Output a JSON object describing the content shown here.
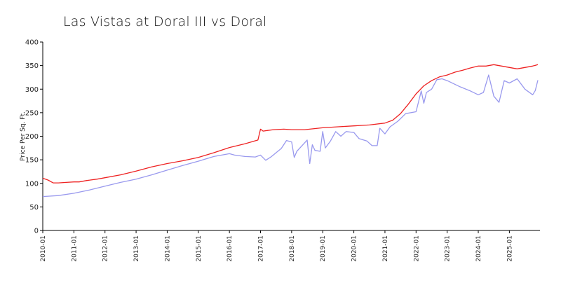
{
  "chart_data": {
    "type": "line",
    "title": "Las Vistas at Doral III vs Doral",
    "xlabel": "",
    "ylabel": "Price Per Sq. Ft.",
    "ylim": [
      0,
      400
    ],
    "yticks": [
      0,
      50,
      100,
      150,
      200,
      250,
      300,
      350,
      400
    ],
    "xlim": [
      "2010-01",
      "2025-12"
    ],
    "xticks": [
      "2010-01",
      "2011-01",
      "2012-01",
      "2013-01",
      "2014-01",
      "2015-01",
      "2016-01",
      "2017-01",
      "2018-01",
      "2019-01",
      "2020-01",
      "2021-01",
      "2022-01",
      "2023-01",
      "2024-01",
      "2025-01"
    ],
    "grid": false,
    "legend": "none",
    "series": [
      {
        "color": "#ee2222",
        "points": [
          [
            "2010-01",
            111
          ],
          [
            "2010-03",
            107
          ],
          [
            "2010-05",
            101
          ],
          [
            "2010-07",
            101
          ],
          [
            "2010-10",
            102
          ],
          [
            "2011-01",
            103
          ],
          [
            "2011-03",
            103
          ],
          [
            "2011-06",
            106
          ],
          [
            "2011-10",
            109
          ],
          [
            "2012-01",
            112
          ],
          [
            "2012-07",
            118
          ],
          [
            "2013-01",
            126
          ],
          [
            "2013-07",
            135
          ],
          [
            "2014-01",
            142
          ],
          [
            "2014-07",
            148
          ],
          [
            "2015-01",
            155
          ],
          [
            "2015-07",
            165
          ],
          [
            "2016-01",
            176
          ],
          [
            "2016-07",
            184
          ],
          [
            "2016-12",
            192
          ],
          [
            "2017-01",
            215
          ],
          [
            "2017-02",
            211
          ],
          [
            "2017-06",
            214
          ],
          [
            "2017-10",
            215
          ],
          [
            "2018-01",
            214
          ],
          [
            "2018-06",
            214
          ],
          [
            "2019-01",
            218
          ],
          [
            "2019-07",
            220
          ],
          [
            "2020-01",
            222
          ],
          [
            "2020-07",
            224
          ],
          [
            "2021-01",
            228
          ],
          [
            "2021-04",
            234
          ],
          [
            "2021-07",
            248
          ],
          [
            "2021-10",
            268
          ],
          [
            "2022-01",
            290
          ],
          [
            "2022-04",
            307
          ],
          [
            "2022-07",
            318
          ],
          [
            "2022-10",
            326
          ],
          [
            "2023-01",
            330
          ],
          [
            "2023-04",
            336
          ],
          [
            "2023-07",
            340
          ],
          [
            "2023-10",
            345
          ],
          [
            "2024-01",
            349
          ],
          [
            "2024-04",
            349
          ],
          [
            "2024-07",
            352
          ],
          [
            "2024-10",
            349
          ],
          [
            "2025-01",
            346
          ],
          [
            "2025-04",
            343
          ],
          [
            "2025-07",
            346
          ],
          [
            "2025-10",
            349
          ],
          [
            "2025-12",
            352
          ]
        ]
      },
      {
        "color": "#9999ee",
        "points": [
          [
            "2010-01",
            72
          ],
          [
            "2010-07",
            74
          ],
          [
            "2011-01",
            79
          ],
          [
            "2011-07",
            86
          ],
          [
            "2012-01",
            94
          ],
          [
            "2012-07",
            102
          ],
          [
            "2013-01",
            109
          ],
          [
            "2013-07",
            118
          ],
          [
            "2014-01",
            128
          ],
          [
            "2014-07",
            138
          ],
          [
            "2015-01",
            147
          ],
          [
            "2015-07",
            157
          ],
          [
            "2016-01",
            163
          ],
          [
            "2016-03",
            160
          ],
          [
            "2016-07",
            157
          ],
          [
            "2016-11",
            156
          ],
          [
            "2017-01",
            160
          ],
          [
            "2017-03",
            149
          ],
          [
            "2017-05",
            156
          ],
          [
            "2017-07",
            165
          ],
          [
            "2017-09",
            174
          ],
          [
            "2017-11",
            191
          ],
          [
            "2018-01",
            188
          ],
          [
            "2018-02",
            155
          ],
          [
            "2018-03",
            168
          ],
          [
            "2018-05",
            180
          ],
          [
            "2018-07",
            192
          ],
          [
            "2018-08",
            142
          ],
          [
            "2018-09",
            182
          ],
          [
            "2018-10",
            170
          ],
          [
            "2018-12",
            168
          ],
          [
            "2019-01",
            210
          ],
          [
            "2019-02",
            175
          ],
          [
            "2019-04",
            190
          ],
          [
            "2019-06",
            210
          ],
          [
            "2019-08",
            200
          ],
          [
            "2019-10",
            210
          ],
          [
            "2020-01",
            208
          ],
          [
            "2020-03",
            195
          ],
          [
            "2020-06",
            190
          ],
          [
            "2020-08",
            180
          ],
          [
            "2020-10",
            180
          ],
          [
            "2020-11",
            217
          ],
          [
            "2021-01",
            205
          ],
          [
            "2021-03",
            220
          ],
          [
            "2021-06",
            232
          ],
          [
            "2021-09",
            248
          ],
          [
            "2022-01",
            252
          ],
          [
            "2022-03",
            296
          ],
          [
            "2022-04",
            270
          ],
          [
            "2022-05",
            293
          ],
          [
            "2022-07",
            300
          ],
          [
            "2022-09",
            320
          ],
          [
            "2022-11",
            322
          ],
          [
            "2023-01",
            318
          ],
          [
            "2023-06",
            305
          ],
          [
            "2023-10",
            296
          ],
          [
            "2024-01",
            288
          ],
          [
            "2024-03",
            293
          ],
          [
            "2024-05",
            330
          ],
          [
            "2024-07",
            285
          ],
          [
            "2024-09",
            272
          ],
          [
            "2024-11",
            318
          ],
          [
            "2025-01",
            313
          ],
          [
            "2025-04",
            322
          ],
          [
            "2025-07",
            300
          ],
          [
            "2025-10",
            288
          ],
          [
            "2025-11",
            297
          ],
          [
            "2025-12",
            319
          ]
        ]
      }
    ]
  }
}
